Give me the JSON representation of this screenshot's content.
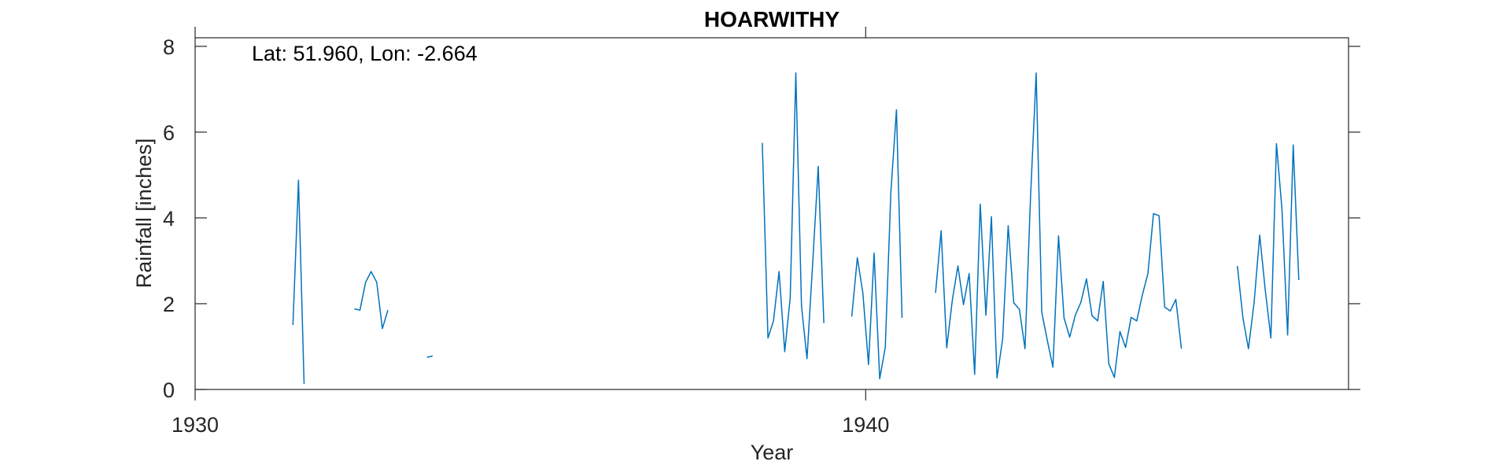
{
  "chart_data": {
    "type": "line",
    "title": "HOARWITHY",
    "annotation": "Lat: 51.960, Lon: -2.664",
    "xlabel": "Year",
    "ylabel": "Rainfall [inches]",
    "xlim": [
      1930,
      1947.2
    ],
    "ylim": [
      0,
      8.2
    ],
    "xticks": [
      1930,
      1940
    ],
    "yticks": [
      0,
      2,
      4,
      6,
      8
    ],
    "grid": false,
    "line_color": "#0072BD",
    "series": [
      {
        "values": [
          [
            1931.458,
            1.5
          ],
          [
            1931.542,
            4.88
          ],
          [
            1931.625,
            0.13
          ],
          [
            1932.375,
            1.88
          ],
          [
            1932.458,
            1.85
          ],
          [
            1932.542,
            2.5
          ],
          [
            1932.625,
            2.75
          ],
          [
            1932.708,
            2.5
          ],
          [
            1932.792,
            1.42
          ],
          [
            1932.875,
            1.85
          ],
          [
            1933.458,
            0.75
          ],
          [
            1933.542,
            0.78
          ],
          [
            1938.458,
            5.75
          ],
          [
            1938.542,
            1.2
          ],
          [
            1938.625,
            1.6
          ],
          [
            1938.708,
            2.75
          ],
          [
            1938.792,
            0.88
          ],
          [
            1938.875,
            2.15
          ],
          [
            1938.958,
            7.38
          ],
          [
            1939.042,
            1.95
          ],
          [
            1939.125,
            0.72
          ],
          [
            1939.208,
            2.9
          ],
          [
            1939.292,
            5.2
          ],
          [
            1939.375,
            1.55
          ],
          [
            1939.792,
            1.7
          ],
          [
            1939.875,
            3.07
          ],
          [
            1939.958,
            2.25
          ],
          [
            1940.042,
            0.58
          ],
          [
            1940.125,
            3.18
          ],
          [
            1940.208,
            0.25
          ],
          [
            1940.292,
            0.98
          ],
          [
            1940.375,
            4.6
          ],
          [
            1940.458,
            6.52
          ],
          [
            1940.542,
            1.67
          ],
          [
            1941.042,
            2.25
          ],
          [
            1941.125,
            3.7
          ],
          [
            1941.208,
            0.97
          ],
          [
            1941.292,
            2.08
          ],
          [
            1941.375,
            2.88
          ],
          [
            1941.458,
            1.98
          ],
          [
            1941.542,
            2.7
          ],
          [
            1941.625,
            0.35
          ],
          [
            1941.708,
            4.32
          ],
          [
            1941.792,
            1.73
          ],
          [
            1941.875,
            4.03
          ],
          [
            1941.958,
            0.27
          ],
          [
            1942.042,
            1.18
          ],
          [
            1942.125,
            3.82
          ],
          [
            1942.208,
            2.02
          ],
          [
            1942.292,
            1.87
          ],
          [
            1942.375,
            0.95
          ],
          [
            1942.458,
            4.48
          ],
          [
            1942.542,
            7.38
          ],
          [
            1942.625,
            1.8
          ],
          [
            1942.708,
            1.15
          ],
          [
            1942.792,
            0.52
          ],
          [
            1942.875,
            3.58
          ],
          [
            1942.958,
            1.67
          ],
          [
            1943.042,
            1.22
          ],
          [
            1943.125,
            1.73
          ],
          [
            1943.208,
            2.03
          ],
          [
            1943.292,
            2.58
          ],
          [
            1943.375,
            1.72
          ],
          [
            1943.458,
            1.6
          ],
          [
            1943.542,
            2.52
          ],
          [
            1943.625,
            0.6
          ],
          [
            1943.708,
            0.28
          ],
          [
            1943.792,
            1.35
          ],
          [
            1943.875,
            0.98
          ],
          [
            1943.958,
            1.68
          ],
          [
            1944.042,
            1.6
          ],
          [
            1944.125,
            2.2
          ],
          [
            1944.208,
            2.7
          ],
          [
            1944.292,
            4.1
          ],
          [
            1944.375,
            4.05
          ],
          [
            1944.458,
            1.92
          ],
          [
            1944.542,
            1.83
          ],
          [
            1944.625,
            2.1
          ],
          [
            1944.708,
            0.95
          ],
          [
            1945.542,
            2.88
          ],
          [
            1945.625,
            1.67
          ],
          [
            1945.708,
            0.95
          ],
          [
            1945.792,
            2.03
          ],
          [
            1945.875,
            3.6
          ],
          [
            1945.958,
            2.33
          ],
          [
            1946.042,
            1.2
          ],
          [
            1946.125,
            5.73
          ],
          [
            1946.208,
            4.2
          ],
          [
            1946.292,
            1.27
          ],
          [
            1946.375,
            5.7
          ],
          [
            1946.458,
            2.55
          ]
        ]
      }
    ]
  }
}
